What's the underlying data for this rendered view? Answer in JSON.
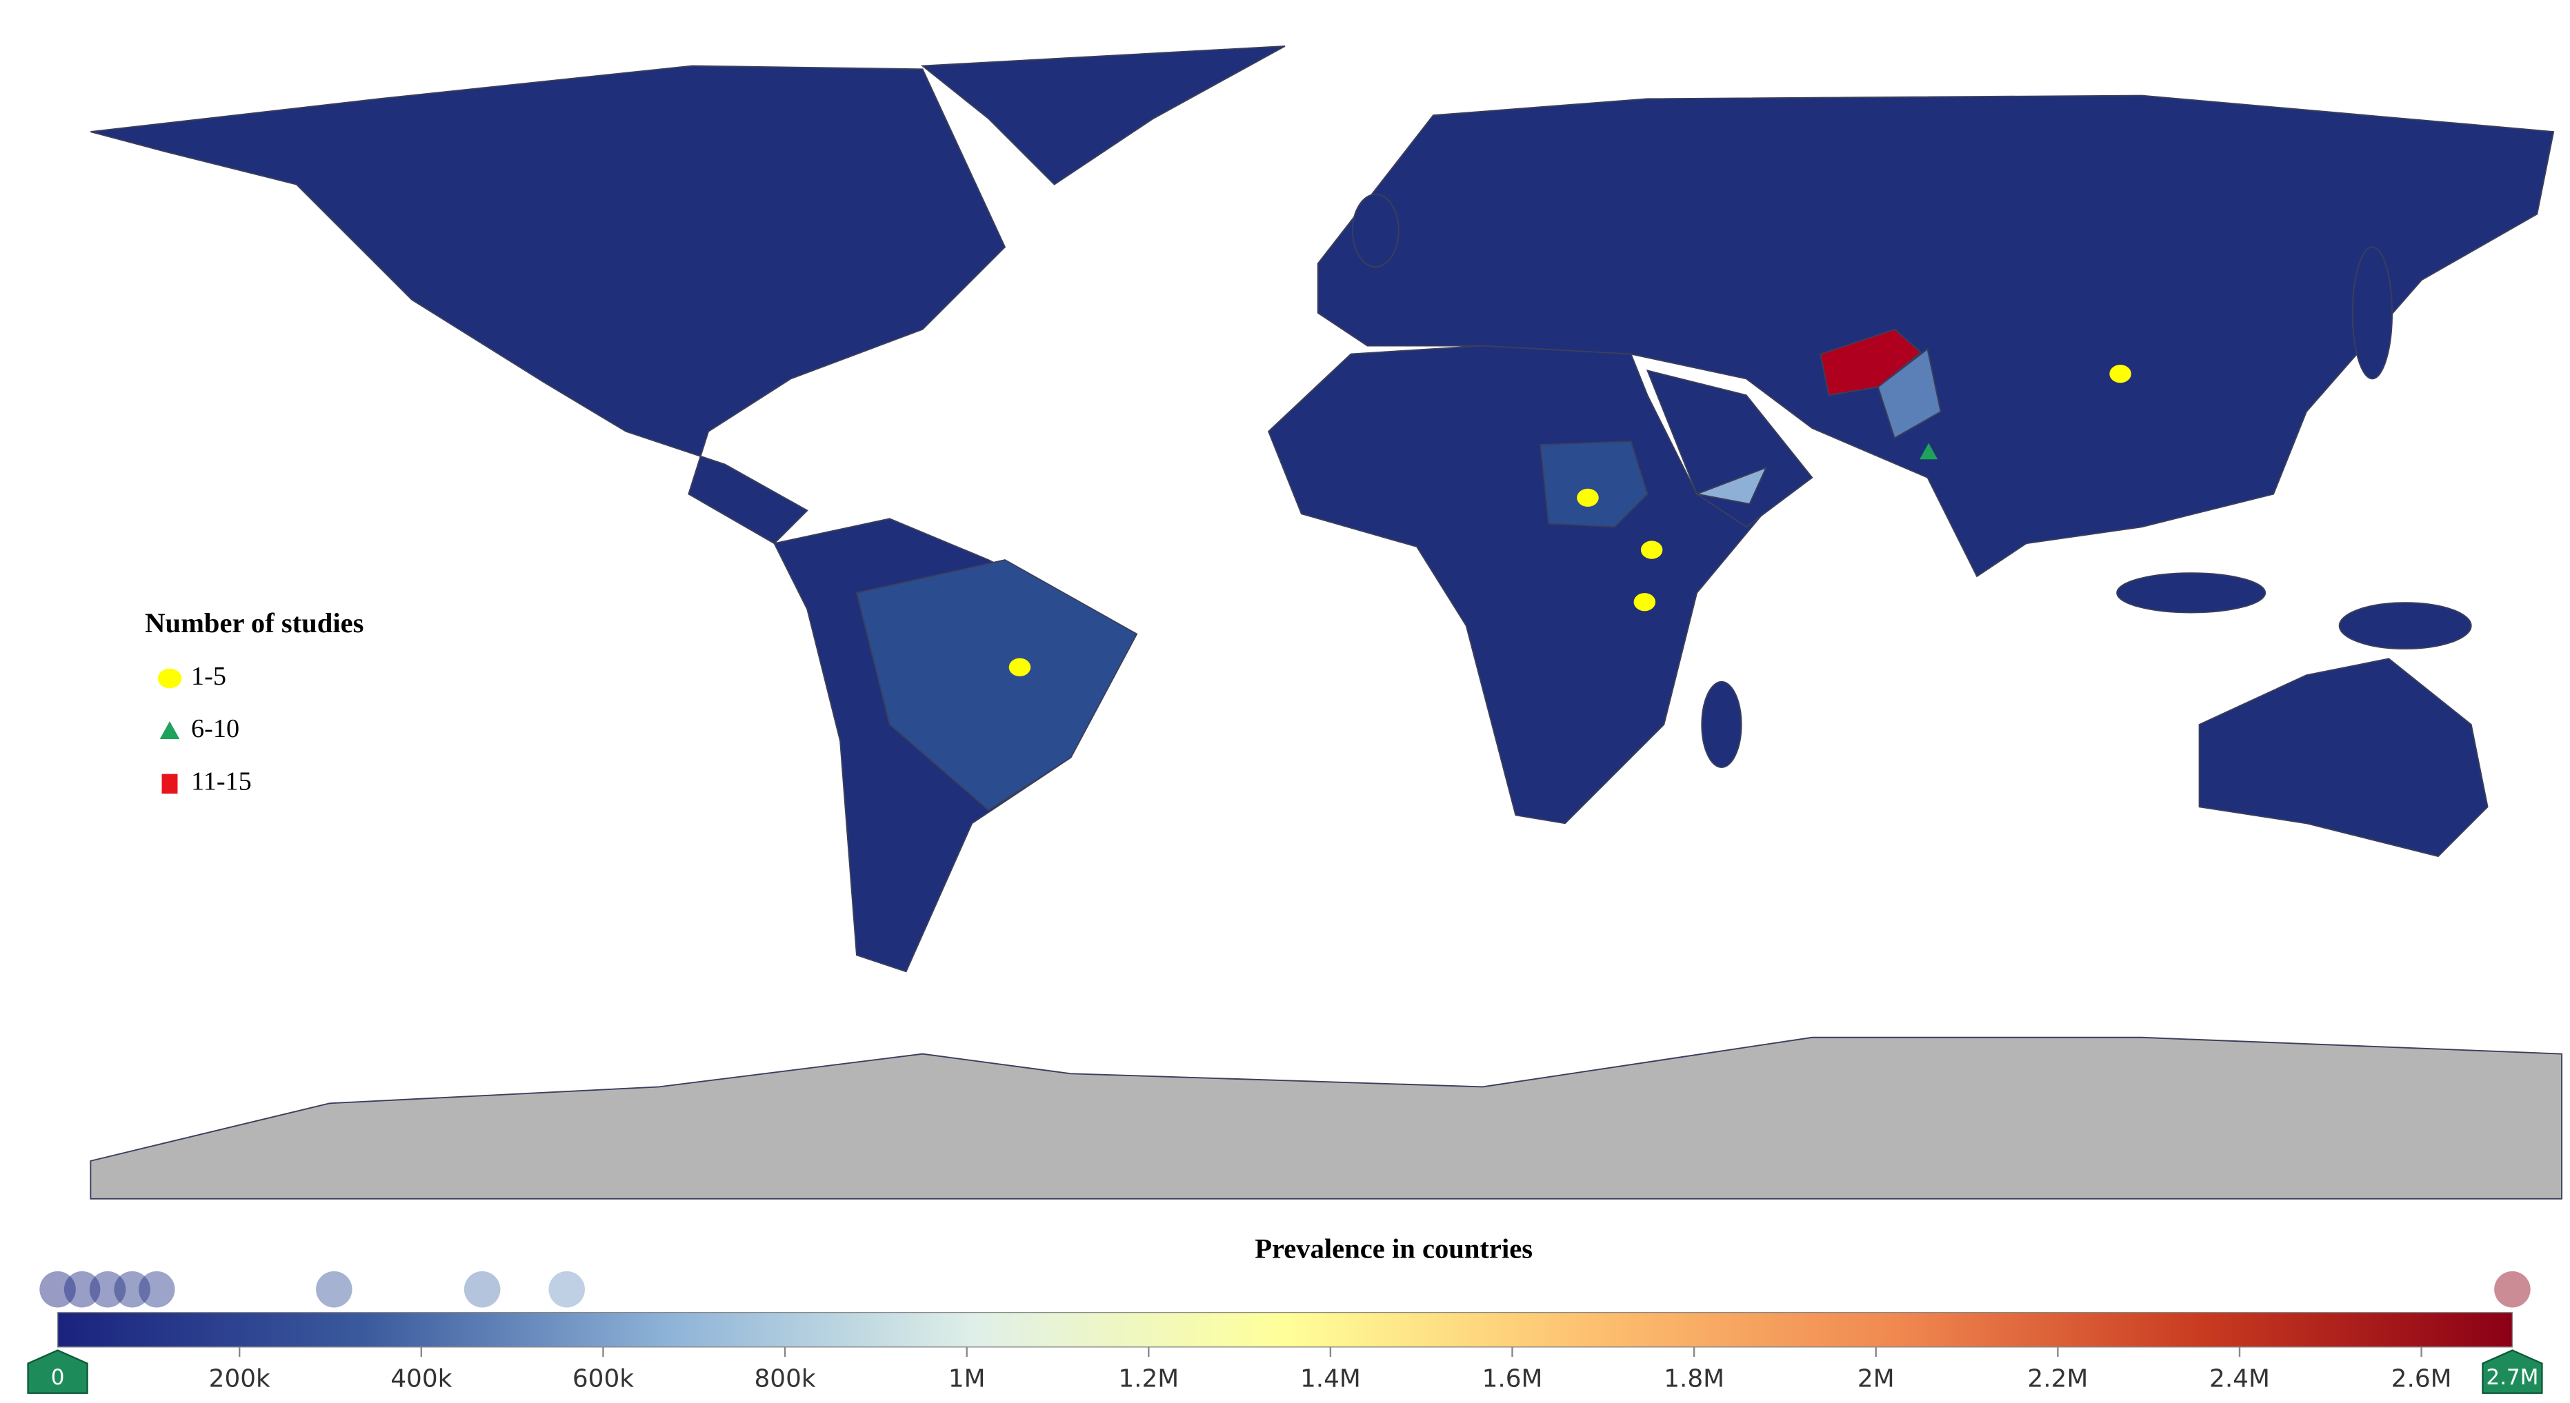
{
  "legend": {
    "title": "Number of studies",
    "items": [
      {
        "label": "1-5",
        "color": "#ffff00",
        "shape": "circle"
      },
      {
        "label": "6-10",
        "color": "#1fa35a",
        "shape": "triangle"
      },
      {
        "label": "11-15",
        "color": "#e8141c",
        "shape": "square"
      }
    ]
  },
  "markers": [
    {
      "lon": -50,
      "lat": -10,
      "group": 0
    },
    {
      "lon": 30,
      "lat": 16,
      "group": 0
    },
    {
      "lon": 39,
      "lat": 8,
      "group": 0
    },
    {
      "lon": 38,
      "lat": 0,
      "group": 0
    },
    {
      "lon": 105,
      "lat": 35,
      "group": 0
    },
    {
      "lon": 78,
      "lat": 23,
      "group": 1
    }
  ],
  "colorbar": {
    "title": "Prevalence in countries",
    "range": [
      0,
      2700000
    ],
    "colorscale": [
      "#1a237e",
      "#3b5a9d",
      "#8fb4d8",
      "#e0f0e8",
      "#ffff99",
      "#fdc070",
      "#f08850",
      "#c83a20",
      "#8b0016"
    ],
    "ticks": [
      {
        "value": 200000,
        "label": "200k"
      },
      {
        "value": 400000,
        "label": "400k"
      },
      {
        "value": 600000,
        "label": "600k"
      },
      {
        "value": 800000,
        "label": "800k"
      },
      {
        "value": 1000000,
        "label": "1M"
      },
      {
        "value": 1200000,
        "label": "1.2M"
      },
      {
        "value": 1400000,
        "label": "1.4M"
      },
      {
        "value": 1600000,
        "label": "1.6M"
      },
      {
        "value": 1800000,
        "label": "1.8M"
      },
      {
        "value": 2000000,
        "label": "2M"
      },
      {
        "value": 2200000,
        "label": "2.2M"
      },
      {
        "value": 2400000,
        "label": "2.4M"
      },
      {
        "value": 2600000,
        "label": "2.6M"
      }
    ],
    "handles": [
      {
        "value": 0,
        "label": "0"
      },
      {
        "value": 2700000,
        "label": "2.7M"
      }
    ],
    "handle_color": "#1e8c5a",
    "points": [
      0,
      27000,
      55000,
      82000,
      109000,
      304000,
      467000,
      560000,
      2700000
    ]
  }
}
